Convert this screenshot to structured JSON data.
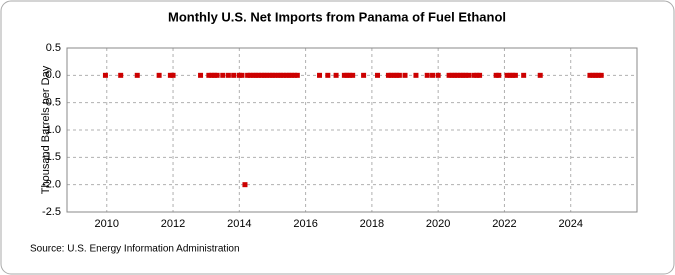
{
  "chart_data": {
    "type": "scatter",
    "title": "Monthly U.S. Net Imports from Panama of Fuel Ethanol",
    "y_label": "Thousand Barrels per Day",
    "source": "Source: U.S. Energy Information Administration",
    "color": "#cc0000",
    "grid": true,
    "xlim": [
      2008.8,
      2026
    ],
    "xticks": [
      2010,
      2012,
      2014,
      2016,
      2018,
      2020,
      2022,
      2024
    ],
    "ylim": [
      -2.5,
      0.5
    ],
    "yticks": [
      0.5,
      {
        "value": 0,
        "label": "0.0"
      },
      -0.5,
      {
        "value": -1,
        "label": "-1.0"
      },
      -1.5,
      {
        "value": -2,
        "label": "-2.0"
      },
      -2.5
    ],
    "x": [
      2009.96,
      2010.42,
      2010.92,
      2011.58,
      2011.92,
      2012.0,
      2012.83,
      2013.08,
      2013.17,
      2013.25,
      2013.33,
      2013.5,
      2013.67,
      2013.83,
      2014.0,
      2014.08,
      2014.17,
      2014.25,
      2014.33,
      2014.42,
      2014.5,
      2014.58,
      2014.67,
      2014.75,
      2014.83,
      2014.92,
      2015.0,
      2015.08,
      2015.17,
      2015.25,
      2015.33,
      2015.42,
      2015.5,
      2015.58,
      2015.67,
      2015.75,
      2016.42,
      2016.67,
      2016.92,
      2017.17,
      2017.25,
      2017.33,
      2017.42,
      2017.75,
      2018.17,
      2018.5,
      2018.58,
      2018.67,
      2018.75,
      2018.83,
      2019.0,
      2019.33,
      2019.67,
      2019.83,
      2020.0,
      2020.33,
      2020.42,
      2020.5,
      2020.58,
      2020.67,
      2020.75,
      2020.83,
      2020.92,
      2021.08,
      2021.17,
      2021.25,
      2021.75,
      2021.83,
      2022.08,
      2022.17,
      2022.25,
      2022.33,
      2022.58,
      2023.08,
      2024.58,
      2024.67,
      2024.75,
      2024.83,
      2024.92
    ],
    "values": [
      0,
      0,
      0,
      0,
      0,
      0,
      0,
      0,
      0,
      0,
      0,
      0,
      0,
      0,
      0,
      0,
      -2,
      0,
      0,
      0,
      0,
      0,
      0,
      0,
      0,
      0,
      0,
      0,
      0,
      0,
      0,
      0,
      0,
      0,
      0,
      0,
      0,
      0,
      0,
      0,
      0,
      0,
      0,
      0,
      0,
      0,
      0,
      0,
      0,
      0,
      0,
      0,
      0,
      0,
      0,
      0,
      0,
      0,
      0,
      0,
      0,
      0,
      0,
      0,
      0,
      0,
      0,
      0,
      0,
      0,
      0,
      0,
      0,
      0,
      0,
      0,
      0,
      0,
      0
    ]
  }
}
